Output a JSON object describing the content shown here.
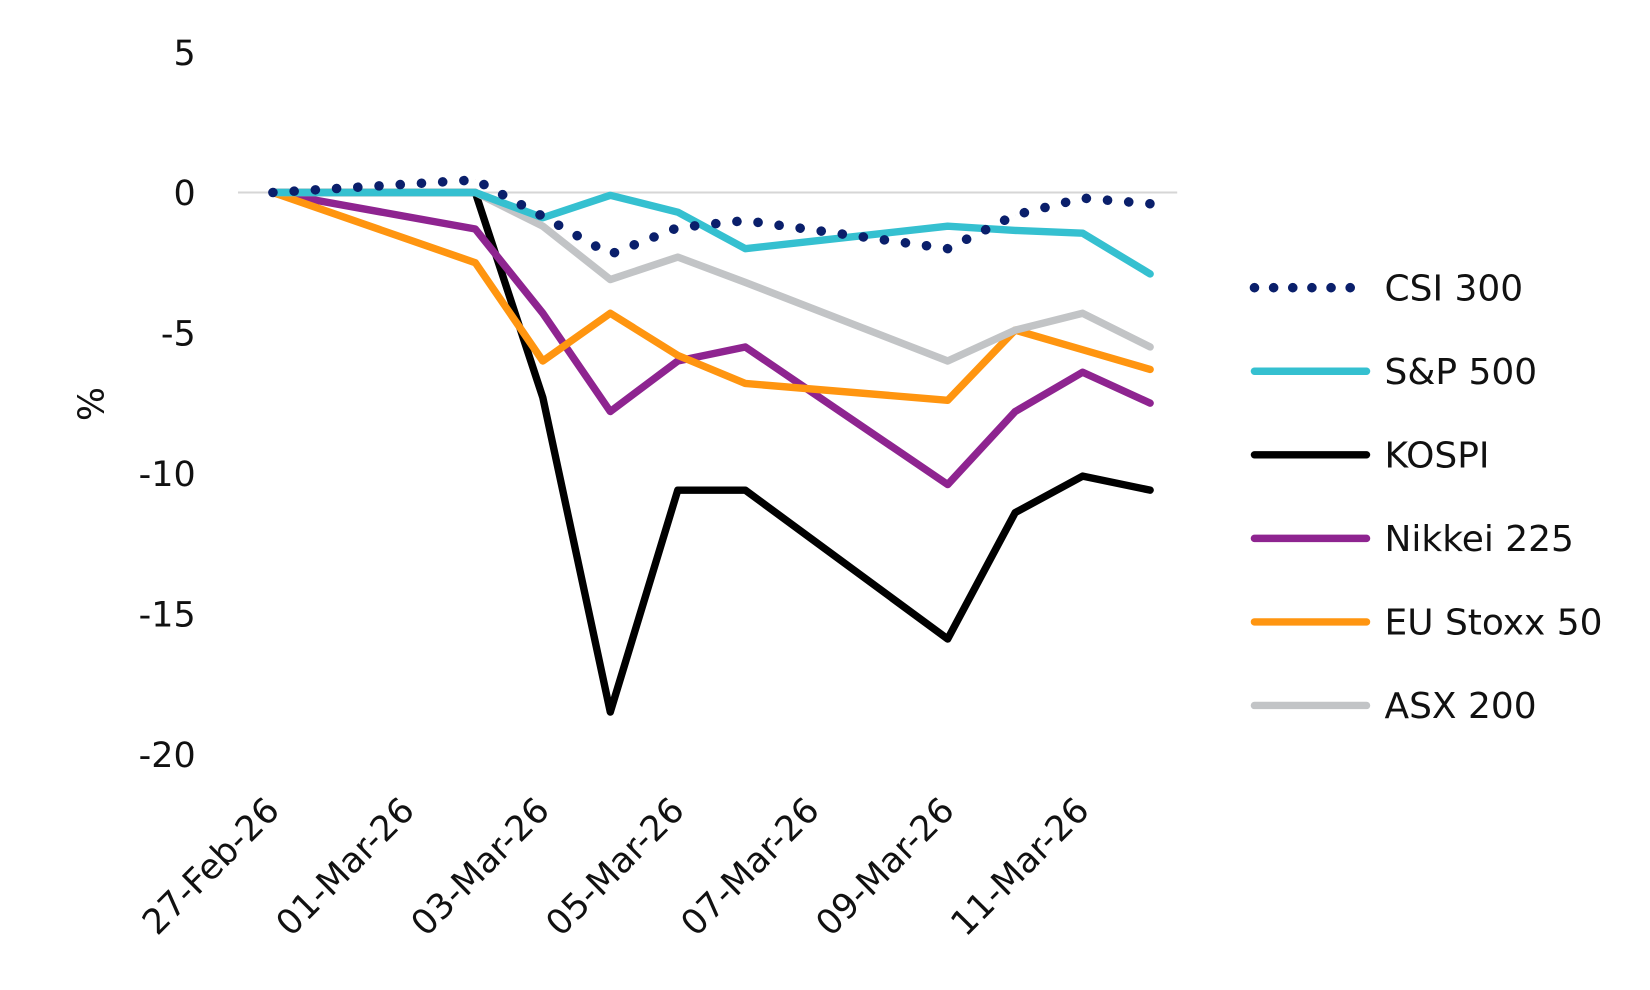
{
  "chart_data": {
    "type": "line",
    "title": "",
    "xlabel": "",
    "ylabel": "%",
    "ylim": [
      -20,
      5
    ],
    "yticks": [
      5,
      0,
      -5,
      -10,
      -15,
      -20
    ],
    "xlim": [
      "27-Feb-26",
      "12-Mar-26"
    ],
    "xtick_labels": [
      "27-Feb-26",
      "01-Mar-26",
      "03-Mar-26",
      "05-Mar-26",
      "07-Mar-26",
      "09-Mar-26",
      "11-Mar-26"
    ],
    "zero_line": true,
    "grid": false,
    "legend_position": "right",
    "x": [
      "27-Feb-26",
      "02-Mar-26",
      "03-Mar-26",
      "04-Mar-26",
      "05-Mar-26",
      "06-Mar-26",
      "09-Mar-26",
      "10-Mar-26",
      "11-Mar-26",
      "12-Mar-26"
    ],
    "series": [
      {
        "name": "CSI 300",
        "color": "#0a1f6b",
        "style": "dotted",
        "values": [
          0,
          0.45,
          -0.85,
          -2.2,
          -1.25,
          -1.0,
          -2.0,
          -0.8,
          -0.2,
          -0.4
        ]
      },
      {
        "name": "S&P 500",
        "color": "#35c0d0",
        "style": "solid",
        "values": [
          0,
          0,
          -0.9,
          -0.1,
          -0.7,
          -2.0,
          -1.2,
          -1.35,
          -1.45,
          -2.9
        ]
      },
      {
        "name": "KOSPI",
        "color": "#000000",
        "style": "solid",
        "values": [
          0,
          0,
          -7.3,
          -18.5,
          -10.6,
          -10.6,
          -15.9,
          -11.4,
          -10.1,
          -10.6
        ]
      },
      {
        "name": "Nikkei 225",
        "color": "#8e2490",
        "style": "solid",
        "values": [
          0,
          -1.3,
          -4.3,
          -7.8,
          -6.0,
          -5.5,
          -10.4,
          -7.8,
          -6.4,
          -7.5
        ]
      },
      {
        "name": "EU Stoxx 50",
        "color": "#ff9510",
        "style": "solid",
        "values": [
          0,
          -2.5,
          -6.0,
          -4.3,
          -5.8,
          -6.8,
          -7.4,
          -4.9,
          -5.6,
          -6.3
        ]
      },
      {
        "name": "ASX 200",
        "color": "#c2c4c6",
        "style": "solid",
        "values": [
          0,
          0,
          -1.2,
          -3.1,
          -2.3,
          -3.2,
          -6.0,
          -4.9,
          -4.3,
          -5.5
        ]
      }
    ]
  }
}
